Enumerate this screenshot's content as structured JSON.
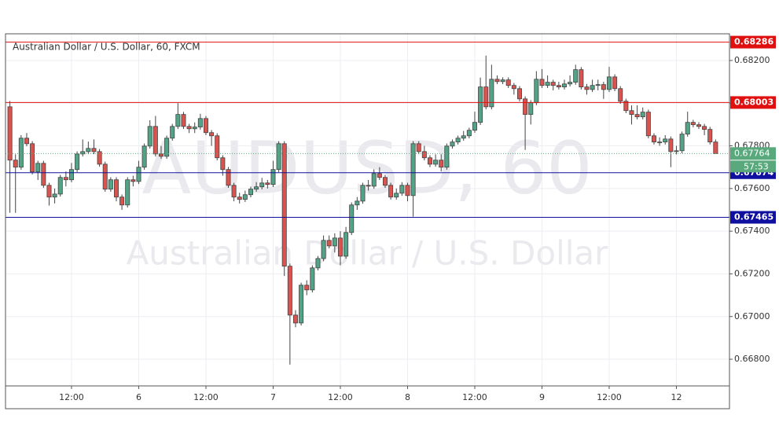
{
  "chart_data": {
    "type": "candlestick",
    "title": "Australian Dollar / U.S. Dollar, 60, FXCM",
    "watermark": "AUDUSD, 60",
    "watermark_subtitle": "Australian Dollar / U.S. Dollar",
    "categories": [
      null,
      null,
      null,
      null,
      null,
      null,
      null,
      null,
      null,
      null,
      null,
      "12:00",
      null,
      null,
      null,
      null,
      null,
      null,
      null,
      null,
      null,
      null,
      null,
      "6",
      null,
      null,
      null,
      null,
      null,
      null,
      null,
      null,
      null,
      null,
      null,
      "12:00",
      null,
      null,
      null,
      null,
      null,
      null,
      null,
      null,
      null,
      null,
      null,
      "7",
      null,
      null,
      null,
      null,
      null,
      null,
      null,
      null,
      null,
      null,
      null,
      "12:00",
      null,
      null,
      null,
      null,
      null,
      null,
      null,
      null,
      null,
      null,
      null,
      "8",
      null,
      null,
      null,
      null,
      null,
      null,
      null,
      null,
      null,
      null,
      null,
      "12:00",
      null,
      null,
      null,
      null,
      null,
      null,
      null,
      null,
      null,
      null,
      null,
      "9",
      null,
      null,
      null,
      null,
      null,
      null,
      null,
      null,
      null,
      null,
      null,
      "12:00",
      null,
      null,
      null,
      null,
      null,
      null,
      null,
      null,
      null,
      null,
      null,
      "12",
      null,
      null,
      null,
      null,
      null,
      null,
      null
    ],
    "open": [
      0.67983,
      0.67733,
      0.677,
      0.67836,
      0.6781,
      0.67678,
      0.67718,
      0.67615,
      0.6756,
      0.67574,
      0.67652,
      0.67641,
      0.67689,
      0.67762,
      0.67773,
      0.67788,
      0.67773,
      0.67714,
      0.67597,
      0.67641,
      0.6756,
      0.67523,
      0.67641,
      0.67633,
      0.677,
      0.67799,
      0.67891,
      0.67762,
      0.67751,
      0.67836,
      0.67891,
      0.67947,
      0.67891,
      0.6788,
      0.67888,
      0.67928,
      0.67862,
      0.67847,
      0.67744,
      0.67689,
      0.67615,
      0.6756,
      0.67549,
      0.67571,
      0.67597,
      0.67608,
      0.67626,
      0.67619,
      0.67689,
      0.6781,
      0.67236,
      0.67007,
      0.6697,
      0.67147,
      0.67125,
      0.67228,
      0.67272,
      0.67357,
      0.67331,
      0.67368,
      0.67283,
      0.67394,
      0.67523,
      0.67541,
      0.67615,
      0.67611,
      0.6767,
      0.67652,
      0.67615,
      0.6756,
      0.67578,
      0.67615,
      0.67567,
      0.6781,
      0.67773,
      0.67744,
      0.67714,
      0.67733,
      0.677,
      0.67799,
      0.67818,
      0.67836,
      0.67847,
      0.67873,
      0.6791,
      0.68076,
      0.67983,
      0.68112,
      0.68101,
      0.68109,
      0.68083,
      0.68068,
      0.6802,
      0.67947,
      0.68002,
      0.68112,
      0.68083,
      0.68098,
      0.68083,
      0.68076,
      0.6809,
      0.68098,
      0.68157,
      0.68076,
      0.68064,
      0.68083,
      0.68087,
      0.68064,
      0.68123,
      0.68068,
      0.68009,
      0.67965,
      0.67947,
      0.67936,
      0.67958,
      0.67847,
      0.67818,
      0.67818,
      0.67832,
      0.67773,
      0.67777,
      0.67855,
      0.6791,
      0.67899,
      0.67891,
      0.67877,
      0.67818
    ],
    "high": [
      0.6801,
      0.6776,
      0.6785,
      0.6786,
      0.67822,
      0.6773,
      0.6773,
      0.67627,
      0.676,
      0.67664,
      0.6768,
      0.6772,
      0.67774,
      0.6783,
      0.6782,
      0.6783,
      0.67785,
      0.67726,
      0.67653,
      0.67653,
      0.67572,
      0.67653,
      0.6766,
      0.6773,
      0.67811,
      0.6792,
      0.6794,
      0.678,
      0.67848,
      0.67903,
      0.68,
      0.67959,
      0.67903,
      0.6791,
      0.6795,
      0.6794,
      0.67874,
      0.67859,
      0.67756,
      0.67701,
      0.67627,
      0.6758,
      0.6759,
      0.67609,
      0.6763,
      0.6765,
      0.6764,
      0.6773,
      0.67822,
      0.67822,
      0.67248,
      0.6703,
      0.67159,
      0.6717,
      0.6724,
      0.67284,
      0.6738,
      0.6738,
      0.6739,
      0.674,
      0.6742,
      0.67535,
      0.6756,
      0.67627,
      0.6764,
      0.6769,
      0.677,
      0.67664,
      0.67627,
      0.676,
      0.6763,
      0.67627,
      0.67822,
      0.67822,
      0.678,
      0.67756,
      0.6776,
      0.6776,
      0.67811,
      0.6783,
      0.67848,
      0.6787,
      0.67885,
      0.6796,
      0.6812,
      0.68223,
      0.6818,
      0.6813,
      0.68121,
      0.68121,
      0.68095,
      0.6808,
      0.68032,
      0.68014,
      0.6815,
      0.6816,
      0.6813,
      0.6811,
      0.681,
      0.6811,
      0.6813,
      0.6818,
      0.68169,
      0.6809,
      0.6811,
      0.6811,
      0.681,
      0.6817,
      0.68135,
      0.6808,
      0.68021,
      0.6799,
      0.6799,
      0.6798,
      0.6797,
      0.67859,
      0.6784,
      0.6785,
      0.67844,
      0.678,
      0.67867,
      0.6796,
      0.67922,
      0.67911,
      0.67903,
      0.67889,
      0.6783
    ],
    "low": [
      0.67486,
      0.67486,
      0.67688,
      0.67798,
      0.67666,
      0.6764,
      0.67603,
      0.6752,
      0.6753,
      0.67562,
      0.6761,
      0.67629,
      0.67677,
      0.6775,
      0.67761,
      0.67761,
      0.67702,
      0.67585,
      0.67585,
      0.6754,
      0.675,
      0.67511,
      0.6761,
      0.67621,
      0.67688,
      0.67787,
      0.6775,
      0.67739,
      0.67739,
      0.67824,
      0.67879,
      0.67879,
      0.6786,
      0.6786,
      0.67876,
      0.6785,
      0.678,
      0.67732,
      0.6766,
      0.67603,
      0.6754,
      0.6753,
      0.67537,
      0.67559,
      0.67585,
      0.67596,
      0.676,
      0.67607,
      0.67677,
      0.6719,
      0.66775,
      0.6695,
      0.66958,
      0.671,
      0.67113,
      0.67216,
      0.6726,
      0.67319,
      0.673,
      0.6724,
      0.67271,
      0.67382,
      0.675,
      0.67529,
      0.6759,
      0.67599,
      0.6764,
      0.67603,
      0.67548,
      0.67548,
      0.67566,
      0.6754,
      0.67468,
      0.67761,
      0.67732,
      0.677,
      0.67702,
      0.6768,
      0.67688,
      0.67787,
      0.67806,
      0.67824,
      0.67835,
      0.67861,
      0.67898,
      0.67971,
      0.67971,
      0.68089,
      0.68089,
      0.68071,
      0.6804,
      0.68008,
      0.67781,
      0.679,
      0.6799,
      0.68071,
      0.68071,
      0.6806,
      0.68064,
      0.68064,
      0.68078,
      0.68086,
      0.68064,
      0.6804,
      0.68052,
      0.6806,
      0.6802,
      0.68052,
      0.68056,
      0.67997,
      0.67953,
      0.679,
      0.67924,
      0.67924,
      0.67835,
      0.67806,
      0.678,
      0.67806,
      0.677,
      0.6776,
      0.67765,
      0.67843,
      0.67887,
      0.67879,
      0.6785,
      0.67806,
      0.67764
    ],
    "close": [
      0.67733,
      0.677,
      0.67836,
      0.6781,
      0.67678,
      0.67718,
      0.67615,
      0.6756,
      0.67574,
      0.67652,
      0.67641,
      0.67689,
      0.67762,
      0.67773,
      0.67788,
      0.67773,
      0.67714,
      0.67597,
      0.67641,
      0.6756,
      0.67523,
      0.67641,
      0.67633,
      0.677,
      0.67799,
      0.67891,
      0.67762,
      0.67751,
      0.67836,
      0.67891,
      0.67947,
      0.67891,
      0.6788,
      0.67888,
      0.67928,
      0.67862,
      0.67847,
      0.67744,
      0.67689,
      0.67615,
      0.6756,
      0.67549,
      0.67571,
      0.67597,
      0.67608,
      0.67626,
      0.67619,
      0.67689,
      0.6781,
      0.67236,
      0.67007,
      0.6697,
      0.67147,
      0.67125,
      0.67228,
      0.67272,
      0.67357,
      0.67331,
      0.67368,
      0.67283,
      0.67394,
      0.67523,
      0.67541,
      0.67615,
      0.67611,
      0.6767,
      0.67652,
      0.67615,
      0.6756,
      0.67578,
      0.67615,
      0.67567,
      0.6781,
      0.67773,
      0.67744,
      0.67714,
      0.67733,
      0.677,
      0.67799,
      0.67818,
      0.67836,
      0.67847,
      0.67873,
      0.6791,
      0.68076,
      0.67983,
      0.68112,
      0.68101,
      0.68109,
      0.68083,
      0.68068,
      0.6802,
      0.67947,
      0.68002,
      0.68112,
      0.68083,
      0.68098,
      0.68083,
      0.68076,
      0.6809,
      0.68098,
      0.68157,
      0.68076,
      0.68064,
      0.68083,
      0.68087,
      0.68064,
      0.68123,
      0.68068,
      0.68009,
      0.67965,
      0.67947,
      0.67936,
      0.67958,
      0.67847,
      0.67818,
      0.67818,
      0.67832,
      0.67773,
      0.67777,
      0.67855,
      0.6791,
      0.67899,
      0.67891,
      0.67877,
      0.67818,
      0.67764
    ],
    "up_color": "#53a386",
    "down_color": "#d9534f",
    "ylim": [
      0.66675,
      0.68325
    ],
    "yticks": [
      {
        "value": 0.668,
        "label": "0.66800"
      },
      {
        "value": 0.67,
        "label": "0.67000"
      },
      {
        "value": 0.672,
        "label": "0.67200"
      },
      {
        "value": 0.674,
        "label": "0.67400"
      },
      {
        "value": 0.676,
        "label": "0.67600"
      },
      {
        "value": 0.678,
        "label": "0.67800"
      },
      {
        "value": 0.68,
        "label": "0.68000"
      },
      {
        "value": 0.682,
        "label": "0.68200"
      }
    ],
    "grid": true,
    "levels": [
      {
        "value": 0.68286,
        "color": "#e01010"
      },
      {
        "value": 0.68003,
        "color": "#e01010"
      },
      {
        "value": 0.67674,
        "color": "#1010a0"
      },
      {
        "value": 0.67465,
        "color": "#1010a0"
      }
    ],
    "last_price": 0.67764,
    "last_price_color": "#5aa97d",
    "countdown": "57:53"
  }
}
